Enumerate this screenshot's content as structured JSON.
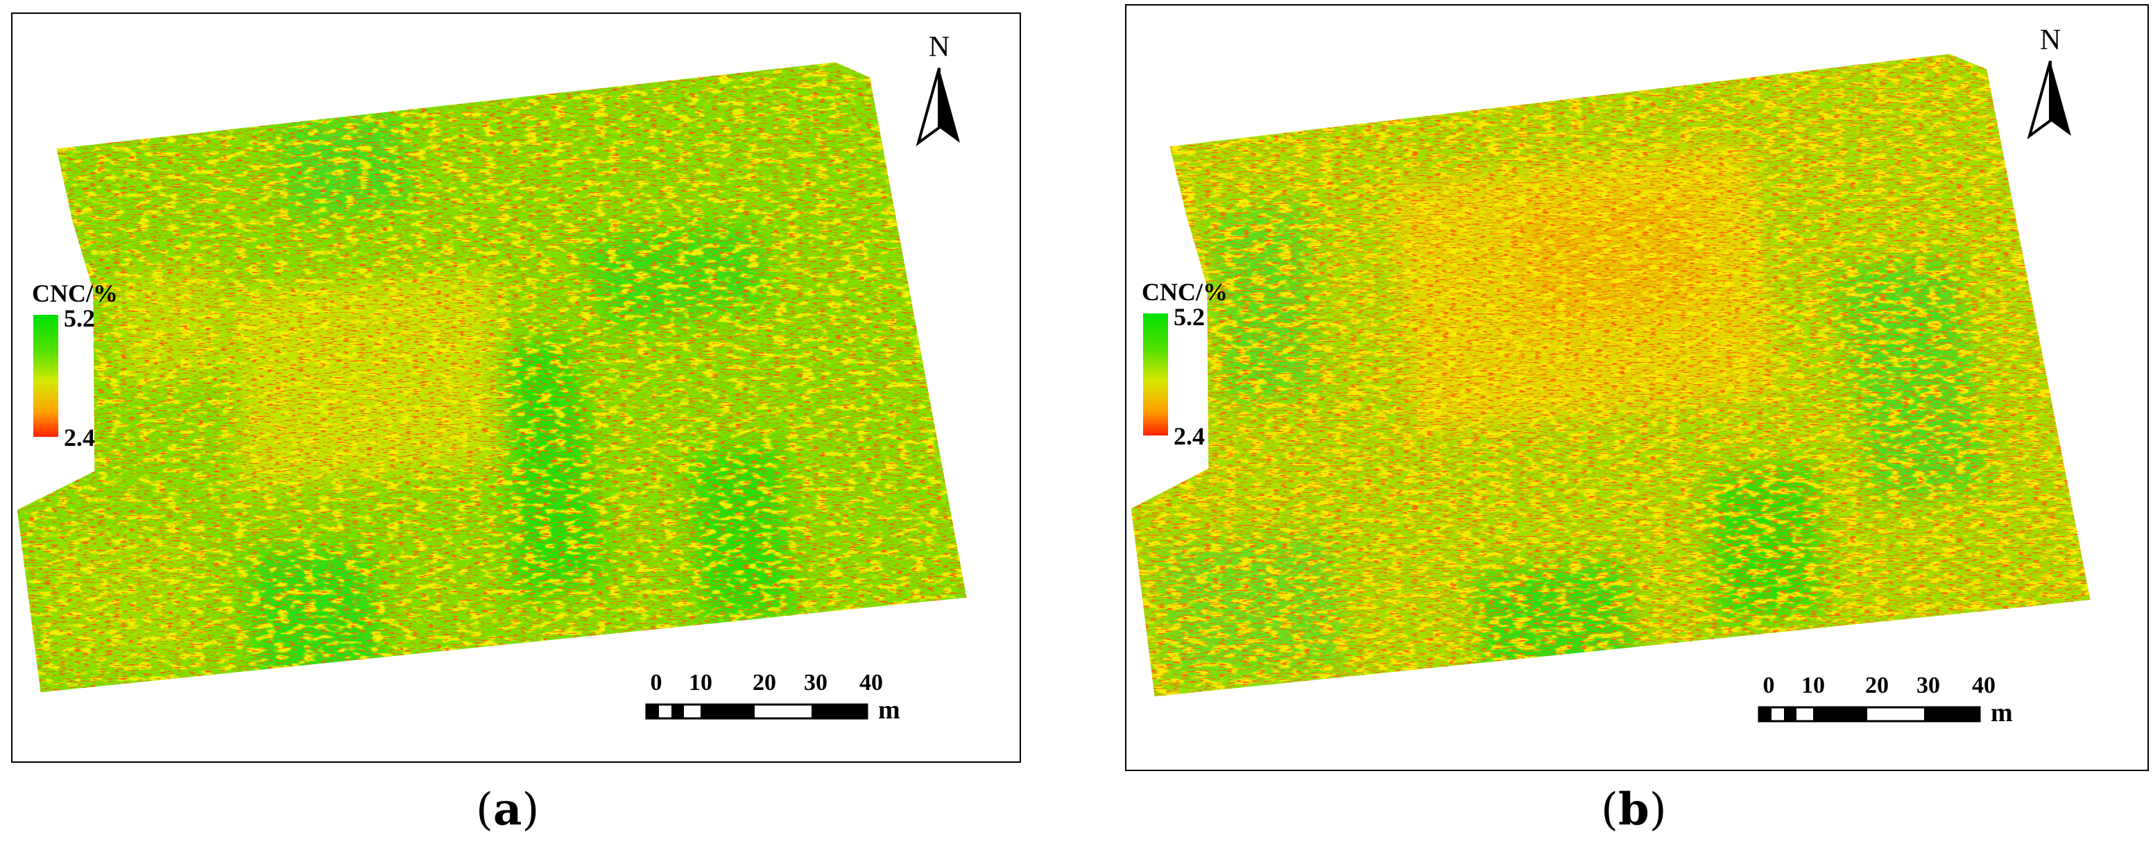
{
  "panels": [
    {
      "id": "a",
      "caption_letter": "a",
      "legend": {
        "title": "CNC/%",
        "max": "5.2",
        "min": "2.4"
      },
      "north_label": "N",
      "scale": {
        "ticks": [
          "0",
          "10",
          "20",
          "30",
          "40"
        ],
        "unit": "m"
      }
    },
    {
      "id": "b",
      "caption_letter": "b",
      "legend": {
        "title": "CNC/%",
        "max": "5.2",
        "min": "2.4"
      },
      "north_label": "N",
      "scale": {
        "ticks": [
          "0",
          "10",
          "20",
          "30",
          "40"
        ],
        "unit": "m"
      }
    }
  ],
  "colors": {
    "high": "#00e000",
    "mid": "#d8e800",
    "low": "#ff2000",
    "frame": "#000000"
  },
  "icons": [
    "north-arrow-icon"
  ]
}
